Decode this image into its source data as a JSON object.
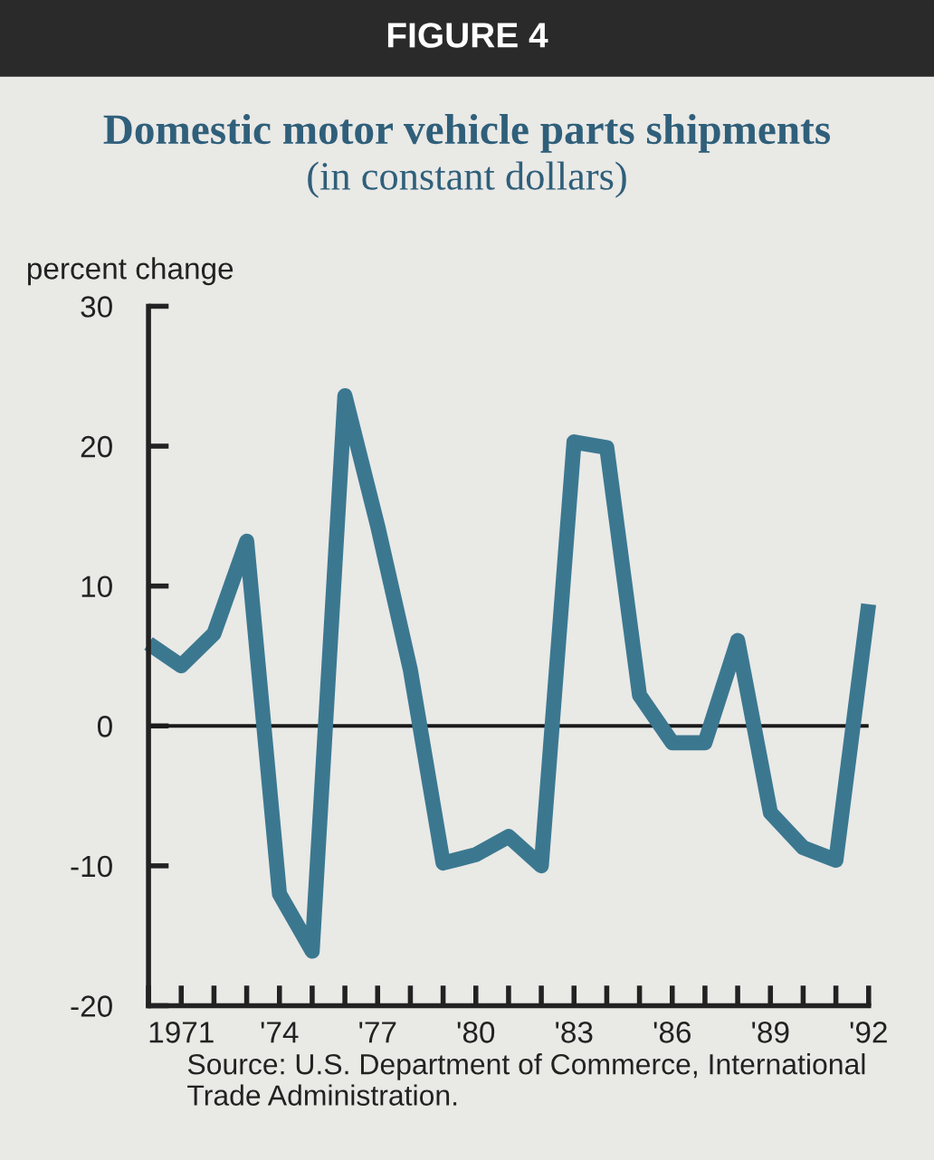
{
  "chart_data": {
    "type": "line",
    "title": "Domestic motor vehicle parts shipments",
    "subtitle": "(in constant dollars)",
    "ylabel": "percent change",
    "annotations": [
      "FIGURE 4",
      "Source: U.S. Department of Commerce, International Trade Administration."
    ],
    "x": [
      1970,
      1971,
      1972,
      1973,
      1974,
      1975,
      1976,
      1977,
      1978,
      1979,
      1980,
      1981,
      1982,
      1983,
      1984,
      1985,
      1986,
      1987,
      1988,
      1989,
      1990,
      1991,
      1992
    ],
    "series": [
      {
        "color": "#3b7890",
        "values": [
          5.9,
          4.3,
          6.6,
          13.2,
          -12.0,
          -16.1,
          23.6,
          14.3,
          4.0,
          -9.8,
          -9.2,
          -7.9,
          -10.0,
          20.3,
          19.9,
          2.2,
          -1.2,
          -1.2,
          6.1,
          -6.2,
          -8.7,
          -9.6,
          8.7
        ]
      }
    ],
    "xlim": [
      1970,
      1992
    ],
    "xticks": [
      {
        "value": 1970,
        "label": null
      },
      {
        "value": 1971,
        "label": "1971"
      },
      {
        "value": 1972,
        "label": null
      },
      {
        "value": 1973,
        "label": null
      },
      {
        "value": 1974,
        "label": "'74"
      },
      {
        "value": 1975,
        "label": null
      },
      {
        "value": 1976,
        "label": null
      },
      {
        "value": 1977,
        "label": "'77"
      },
      {
        "value": 1978,
        "label": null
      },
      {
        "value": 1979,
        "label": null
      },
      {
        "value": 1980,
        "label": "'80"
      },
      {
        "value": 1981,
        "label": null
      },
      {
        "value": 1982,
        "label": null
      },
      {
        "value": 1983,
        "label": "'83"
      },
      {
        "value": 1984,
        "label": null
      },
      {
        "value": 1985,
        "label": null
      },
      {
        "value": 1986,
        "label": "'86"
      },
      {
        "value": 1987,
        "label": null
      },
      {
        "value": 1988,
        "label": null
      },
      {
        "value": 1989,
        "label": "'89"
      },
      {
        "value": 1990,
        "label": null
      },
      {
        "value": 1991,
        "label": null
      },
      {
        "value": 1992,
        "label": "'92"
      }
    ],
    "ylim": [
      -20,
      30
    ],
    "yticks": [
      -20,
      -10,
      0,
      10,
      20,
      30
    ],
    "ref_lines": [
      {
        "axis": "y",
        "value": 0,
        "color": "#1a1a1a"
      }
    ],
    "grid": false,
    "legend": false,
    "marker": "none",
    "line_style": "solid"
  }
}
